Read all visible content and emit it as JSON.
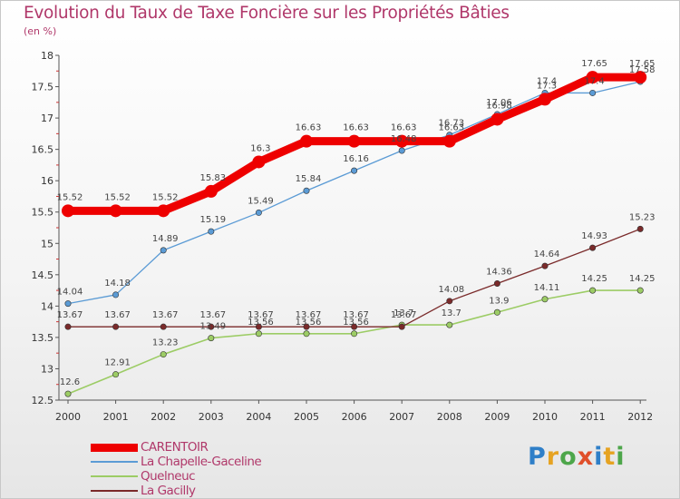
{
  "header": {
    "title": "Evolution du Taux de Taxe Foncière sur les Propriétés Bâties",
    "subtitle": "(en %)"
  },
  "logo": {
    "text": "Proxiti"
  },
  "chart_data": {
    "type": "line",
    "title": "Evolution du Taux de Taxe Foncière sur les Propriétés Bâties",
    "ylabel": "(en %)",
    "xlabel": "",
    "x": [
      "2000",
      "2001",
      "2002",
      "2003",
      "2004",
      "2005",
      "2006",
      "2007",
      "2008",
      "2009",
      "2010",
      "2011",
      "2012"
    ],
    "ylim": [
      12.5,
      18
    ],
    "yticks": [
      "12.5",
      "13",
      "13.5",
      "14",
      "14.5",
      "15",
      "15.5",
      "16",
      "16.5",
      "17",
      "17.5",
      "18"
    ],
    "grid": false,
    "legend_position": "bottom-left",
    "series": [
      {
        "name": "CARENTOIR",
        "color": "#ee0000",
        "values": [
          15.52,
          15.52,
          15.52,
          15.83,
          16.3,
          16.63,
          16.63,
          16.63,
          16.63,
          16.98,
          17.3,
          17.65,
          17.65
        ],
        "labels": [
          "15.52",
          "15.52",
          "15.52",
          "15.83",
          "16.3",
          "16.63",
          "16.63",
          "16.63",
          "16.63",
          "16.98",
          "17.3",
          "17.65",
          "17.65"
        ]
      },
      {
        "name": "La Chapelle-Gaceline",
        "color": "#5b9bd5",
        "values": [
          14.04,
          14.18,
          14.89,
          15.19,
          15.49,
          15.84,
          16.16,
          16.48,
          16.73,
          17.06,
          17.4,
          17.4,
          17.58
        ],
        "labels": [
          "14.04",
          "14.18",
          "14.89",
          "15.19",
          "15.49",
          "15.84",
          "16.16",
          "16.48",
          "16.73",
          "17.06",
          "17.4",
          "17.4",
          "17.58"
        ]
      },
      {
        "name": "Quelneuc",
        "color": "#9ccc65",
        "values": [
          12.6,
          12.91,
          13.23,
          13.49,
          13.56,
          13.56,
          13.56,
          13.7,
          13.7,
          13.9,
          14.11,
          14.25,
          14.25
        ],
        "labels": [
          "12.6",
          "12.91",
          "13.23",
          "13.49",
          "13.56",
          "13.56",
          "13.56",
          "13.7",
          "13.7",
          "13.9",
          "14.11",
          "14.25",
          "14.25"
        ]
      },
      {
        "name": "La Gacilly",
        "color": "#7a2a2a",
        "values": [
          13.67,
          13.67,
          13.67,
          13.67,
          13.67,
          13.67,
          13.67,
          13.67,
          14.08,
          14.36,
          14.64,
          14.93,
          15.23
        ],
        "labels": [
          "13.67",
          "13.67",
          "13.67",
          "13.67",
          "13.67",
          "13.67",
          "13.67",
          "13.67",
          "14.08",
          "14.36",
          "14.64",
          "14.93",
          "15.23"
        ]
      }
    ]
  }
}
